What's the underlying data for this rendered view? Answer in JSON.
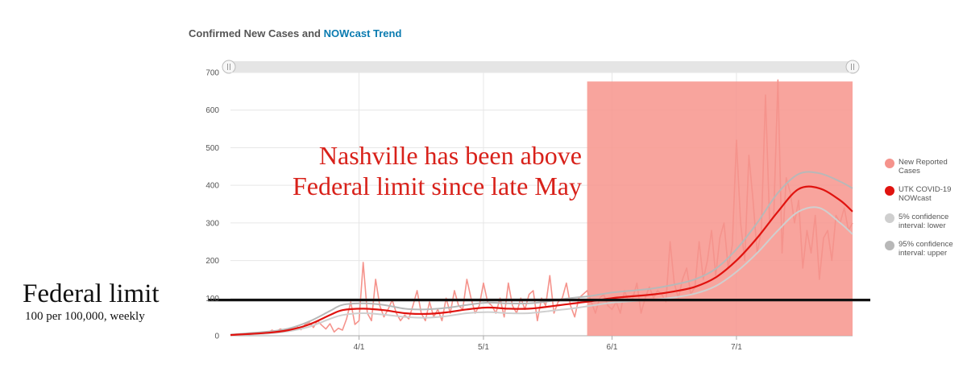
{
  "header": {
    "title_prefix": "Confirmed New Cases and ",
    "title_accent": "NOWcast Trend"
  },
  "annotation": {
    "line1": "Nashville has been above",
    "line2": "Federal limit since late May"
  },
  "federal_limit": {
    "title": "Federal limit",
    "subtitle": "100 per 100,000, weekly"
  },
  "colors": {
    "reported": "#f5938c",
    "nowcast": "#e0130f",
    "ci_lower": "#cfcfcf",
    "ci_upper": "#b8b8b8",
    "highlight": "#f7978f",
    "limit_line": "#111111",
    "accent": "#0a7bb0"
  },
  "chart_data": {
    "type": "line",
    "title": "Confirmed New Cases and NOWcast Trend",
    "ylim": [
      0,
      700
    ],
    "yticks": [
      0,
      100,
      200,
      300,
      400,
      500,
      600,
      700
    ],
    "xlim": [
      1,
      151
    ],
    "x_unit": "day of year 2020 (March 1 = day 1)",
    "xticks": [
      {
        "label": "4/1",
        "value": 32
      },
      {
        "label": "5/1",
        "value": 62
      },
      {
        "label": "6/1",
        "value": 93
      },
      {
        "label": "7/1",
        "value": 123
      }
    ],
    "grid": true,
    "legend_position": "right",
    "reference_line": {
      "value": 95
    },
    "highlight_range": {
      "x0": 87,
      "x1": 151,
      "y_top": 676
    },
    "series": [
      {
        "name": "New Reported Cases",
        "x": [
          1,
          4,
          7,
          10,
          11,
          12,
          13,
          14,
          15,
          16,
          17,
          18,
          19,
          20,
          21,
          22,
          23,
          24,
          25,
          26,
          27,
          28,
          29,
          30,
          31,
          32,
          33,
          34,
          35,
          36,
          37,
          38,
          39,
          40,
          41,
          42,
          43,
          44,
          45,
          46,
          47,
          48,
          49,
          50,
          51,
          52,
          53,
          54,
          55,
          56,
          57,
          58,
          59,
          60,
          61,
          62,
          63,
          64,
          65,
          66,
          67,
          68,
          69,
          70,
          71,
          72,
          73,
          74,
          75,
          76,
          77,
          78,
          79,
          80,
          81,
          82,
          83,
          84,
          85,
          86,
          87,
          88,
          89,
          90,
          91,
          92,
          93,
          94,
          95,
          96,
          97,
          98,
          99,
          100,
          101,
          102,
          103,
          104,
          105,
          106,
          107,
          108,
          109,
          110,
          111,
          112,
          113,
          114,
          115,
          116,
          117,
          118,
          119,
          120,
          121,
          122,
          123,
          124,
          125,
          126,
          127,
          128,
          129,
          130,
          131,
          132,
          133,
          134,
          135,
          136,
          137,
          138,
          139,
          140,
          141,
          142,
          143,
          144,
          145,
          146,
          147,
          148,
          149,
          150,
          151
        ],
        "values": [
          2,
          3,
          5,
          8,
          15,
          10,
          18,
          14,
          12,
          20,
          25,
          16,
          30,
          35,
          22,
          40,
          28,
          18,
          32,
          10,
          20,
          15,
          45,
          90,
          30,
          40,
          195,
          60,
          40,
          150,
          80,
          50,
          70,
          95,
          60,
          40,
          55,
          45,
          80,
          120,
          60,
          40,
          90,
          50,
          70,
          40,
          100,
          60,
          120,
          80,
          70,
          150,
          100,
          60,
          80,
          140,
          90,
          80,
          60,
          100,
          50,
          140,
          80,
          60,
          100,
          70,
          110,
          120,
          40,
          100,
          80,
          160,
          60,
          90,
          100,
          140,
          80,
          50,
          100,
          110,
          120,
          90,
          60,
          100,
          110,
          80,
          70,
          90,
          60,
          120,
          90,
          100,
          140,
          60,
          100,
          130,
          100,
          120,
          110,
          90,
          250,
          140,
          100,
          150,
          180,
          110,
          130,
          250,
          150,
          200,
          280,
          160,
          260,
          300,
          180,
          240,
          520,
          300,
          200,
          480,
          360,
          220,
          280,
          640,
          300,
          320,
          680,
          220,
          420,
          380,
          300,
          360,
          180,
          280,
          220,
          320,
          150,
          260,
          280,
          200,
          320,
          300,
          340,
          280,
          300
        ],
        "marker": "circle"
      },
      {
        "name": "UTK COVID-19 NOWcast",
        "x": [
          1,
          10,
          15,
          20,
          25,
          28,
          33,
          38,
          43,
          48,
          53,
          58,
          63,
          68,
          73,
          78,
          83,
          88,
          93,
          98,
          103,
          108,
          113,
          118,
          123,
          128,
          133,
          138,
          143,
          148,
          151
        ],
        "values": [
          2,
          8,
          15,
          30,
          55,
          68,
          72,
          68,
          60,
          58,
          62,
          70,
          75,
          72,
          72,
          78,
          85,
          92,
          100,
          105,
          110,
          118,
          130,
          155,
          200,
          260,
          330,
          390,
          392,
          360,
          330
        ]
      },
      {
        "name": "5% confidence interval: lower",
        "x": [
          1,
          10,
          15,
          20,
          25,
          28,
          33,
          38,
          43,
          48,
          53,
          58,
          63,
          68,
          73,
          78,
          83,
          88,
          93,
          98,
          103,
          108,
          113,
          118,
          123,
          128,
          133,
          138,
          143,
          148,
          151
        ],
        "values": [
          1,
          6,
          12,
          24,
          45,
          55,
          60,
          56,
          50,
          48,
          52,
          60,
          63,
          60,
          60,
          66,
          72,
          80,
          88,
          92,
          96,
          102,
          112,
          132,
          170,
          220,
          280,
          330,
          340,
          300,
          270
        ]
      },
      {
        "name": "95% confidence interval: upper",
        "x": [
          1,
          10,
          15,
          20,
          25,
          28,
          33,
          38,
          43,
          48,
          53,
          58,
          63,
          68,
          73,
          78,
          83,
          88,
          93,
          98,
          103,
          108,
          113,
          118,
          123,
          128,
          133,
          138,
          143,
          148,
          151
        ],
        "values": [
          3,
          11,
          19,
          38,
          66,
          82,
          86,
          82,
          72,
          70,
          74,
          82,
          88,
          86,
          86,
          92,
          100,
          106,
          115,
          120,
          126,
          136,
          150,
          178,
          230,
          300,
          380,
          430,
          432,
          410,
          392
        ]
      }
    ]
  }
}
